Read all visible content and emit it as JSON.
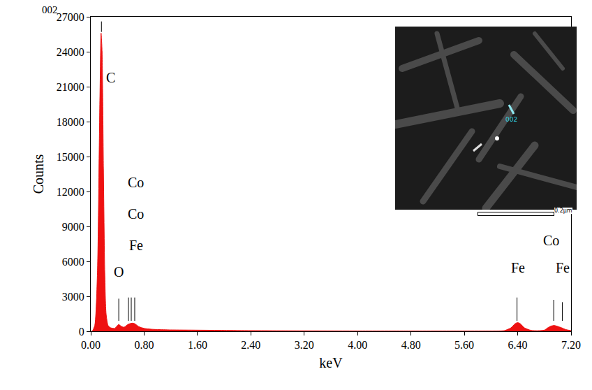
{
  "chart_data": {
    "type": "area",
    "title": "002",
    "x_label": "keV",
    "y_label": "Counts",
    "color": "#ee1111",
    "x": [
      0.0,
      0.02,
      0.06,
      0.1,
      0.13,
      0.155,
      0.17,
      0.19,
      0.21,
      0.23,
      0.26,
      0.3,
      0.36,
      0.4,
      0.42,
      0.45,
      0.5,
      0.56,
      0.62,
      0.66,
      0.72,
      0.8,
      0.9,
      1.0,
      1.2,
      1.6,
      2.0,
      2.4,
      3.2,
      4.0,
      4.8,
      5.6,
      6.0,
      6.2,
      6.3,
      6.36,
      6.4,
      6.44,
      6.5,
      6.6,
      6.7,
      6.8,
      6.85,
      6.9,
      6.95,
      7.0,
      7.06,
      7.12,
      7.2
    ],
    "values": [
      0,
      0,
      500,
      5000,
      17000,
      25600,
      24000,
      14000,
      5000,
      1500,
      500,
      300,
      250,
      500,
      600,
      450,
      350,
      600,
      700,
      650,
      400,
      250,
      180,
      150,
      120,
      100,
      80,
      60,
      40,
      30,
      25,
      25,
      30,
      60,
      300,
      650,
      750,
      650,
      300,
      80,
      50,
      100,
      300,
      450,
      500,
      420,
      300,
      150,
      60
    ],
    "xlim": [
      0,
      7.2
    ],
    "ylim": [
      0,
      27000
    ],
    "xticks": [
      {
        "value": 0,
        "label": "0.00"
      },
      {
        "value": 0.8,
        "label": "0.80"
      },
      {
        "value": 1.6,
        "label": "1.60"
      },
      {
        "value": 2.4,
        "label": "2.40"
      },
      {
        "value": 3.2,
        "label": "3.20"
      },
      {
        "value": 4.0,
        "label": "4.00"
      },
      {
        "value": 4.8,
        "label": "4.80"
      },
      {
        "value": 5.6,
        "label": "5.60"
      },
      {
        "value": 6.4,
        "label": "6.40"
      },
      {
        "value": 7.2,
        "label": "7.20"
      }
    ],
    "yticks": [
      0,
      3000,
      6000,
      9000,
      12000,
      15000,
      18000,
      21000,
      24000,
      27000
    ],
    "grid": false,
    "annotations": [
      {
        "text": "C",
        "x": 0.3,
        "y": 21000,
        "line": [
          25700,
          26600
        ],
        "line_x": 0.16
      },
      {
        "text": "O",
        "x": 0.42,
        "y": 4300,
        "line": [
          900,
          2800
        ],
        "line_x": 0.42
      },
      {
        "text": "Fe",
        "x": 0.68,
        "y": 6600,
        "line": [
          900,
          2900
        ],
        "line_x": 0.565
      },
      {
        "text": "Co",
        "x": 0.68,
        "y": 9300,
        "line": [
          900,
          2900
        ],
        "line_x": 0.607
      },
      {
        "text": "Co",
        "x": 0.68,
        "y": 12000,
        "line": [
          900,
          2900
        ],
        "line_x": 0.659
      },
      {
        "text": "Fe",
        "x": 6.4,
        "y": 4700,
        "line": [
          900,
          2900
        ],
        "line_x": 6.39
      },
      {
        "text": "Co",
        "x": 6.9,
        "y": 7000,
        "line": [
          900,
          2700
        ],
        "line_x": 6.94
      },
      {
        "text": "Fe",
        "x": 7.07,
        "y": 4700,
        "line": [
          900,
          2500
        ],
        "line_x": 7.07
      }
    ],
    "inset": {
      "label": "002",
      "scale_bar": "0.2μm"
    }
  }
}
